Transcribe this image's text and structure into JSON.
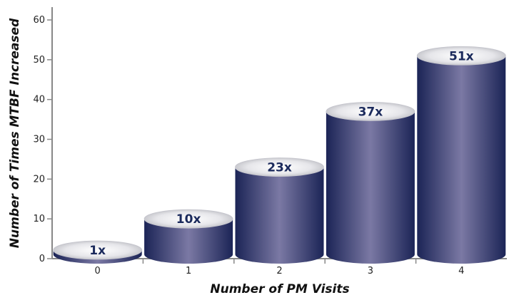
{
  "chart_data": {
    "type": "bar",
    "categories": [
      "0",
      "1",
      "2",
      "3",
      "4"
    ],
    "values": [
      1,
      10,
      23,
      37,
      51
    ],
    "data_labels": [
      "1x",
      "10x",
      "23x",
      "37x",
      "51x"
    ],
    "title": "",
    "xlabel": "Number of PM Visits",
    "ylabel": "Number of Times MTBF Increased",
    "ylim": [
      0,
      60
    ],
    "yticks": [
      "0",
      "10",
      "20",
      "30",
      "40",
      "50",
      "60"
    ],
    "grid": false,
    "legend": "none",
    "style": "3d-cylinder",
    "colors": {
      "bar_dark": "#1b2456",
      "bar_light": "#7b79a4",
      "top_light": "#ffffff",
      "top_dark": "#b4b5bb",
      "label": "#1b2a5c",
      "axis": "#888888"
    }
  }
}
